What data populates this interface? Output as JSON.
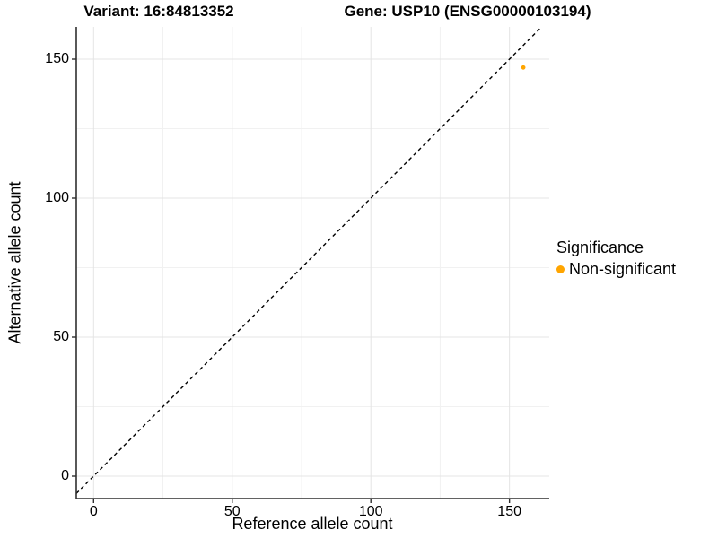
{
  "title": {
    "variant": "Variant: 16:84813352",
    "gene": "Gene: USP10 (ENSG00000103194)"
  },
  "axes": {
    "x": {
      "label": "Reference allele count",
      "ticks": [
        0,
        50,
        100,
        150
      ],
      "minor_ticks": [
        25,
        75,
        125
      ]
    },
    "y": {
      "label": "Alternative allele count",
      "ticks": [
        0,
        50,
        100,
        150
      ],
      "minor_ticks": [
        25,
        75,
        125
      ]
    }
  },
  "legend": {
    "title": "Significance",
    "items": [
      {
        "label": "Non-significant",
        "color": "#FFA500"
      }
    ]
  },
  "chart_data": {
    "type": "scatter",
    "title": "Variant: 16:84813352 | Gene: USP10 (ENSG00000103194)",
    "xlabel": "Reference allele count",
    "ylabel": "Alternative allele count",
    "xlim": [
      -6.2,
      164.4
    ],
    "ylim": [
      -8.1,
      161.6
    ],
    "x_ticks": [
      0,
      50,
      100,
      150
    ],
    "y_ticks": [
      0,
      50,
      100,
      150
    ],
    "grid": true,
    "legend_position": "right",
    "series": [
      {
        "name": "Non-significant",
        "color": "#FFA500",
        "points": [
          {
            "x": 155,
            "y": 147
          }
        ]
      }
    ],
    "reference_line": {
      "type": "identity y=x",
      "style": "dashed",
      "color": "#000000"
    }
  },
  "colors": {
    "point": "#FFA500",
    "grid_major": "#E4E4E4",
    "grid_minor": "#F1F1F1",
    "axis_line": "#2F2F2F",
    "reference_line": "#000000",
    "background": "#FFFFFF",
    "text": "#000000"
  }
}
